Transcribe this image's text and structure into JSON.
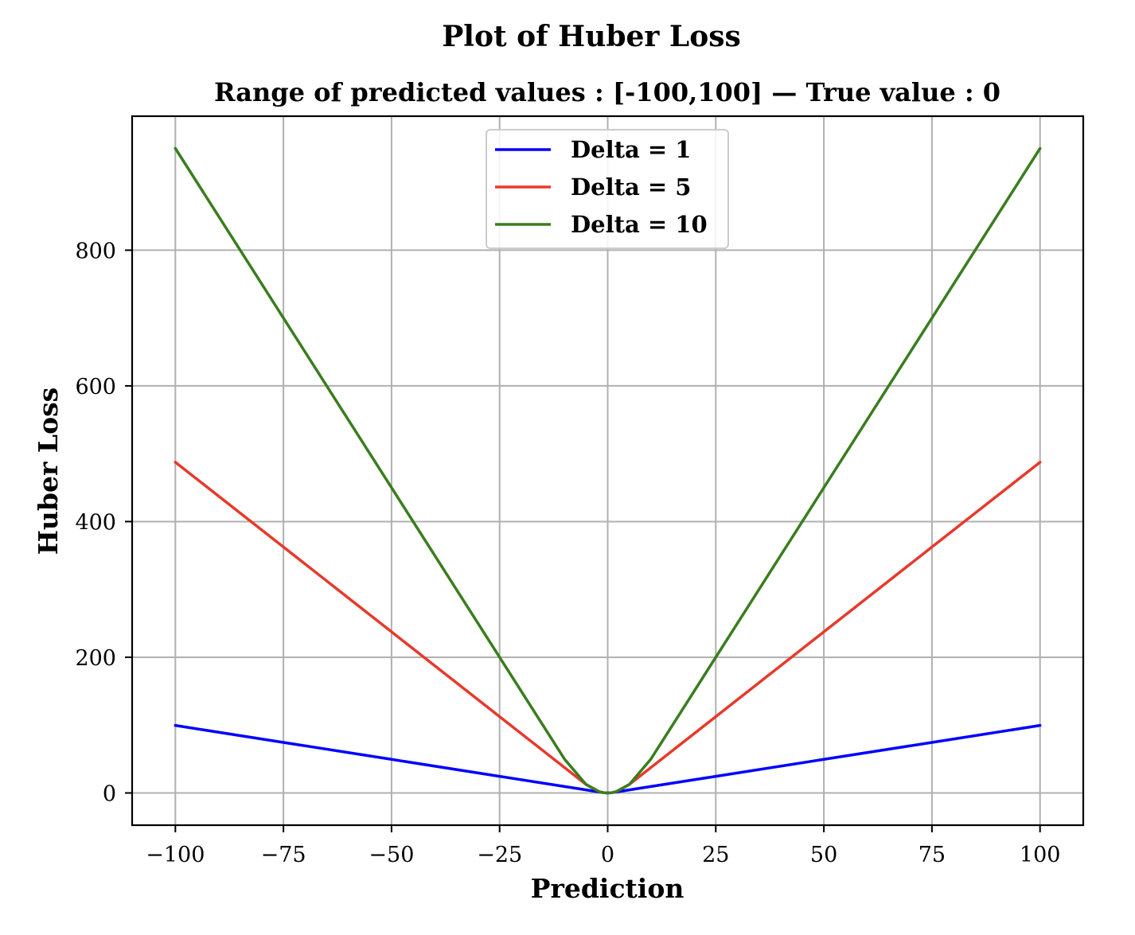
{
  "chart_data": {
    "type": "line",
    "title": "Plot of Huber Loss",
    "subtitle": "Range of predicted values : [-100,100] — True value : 0",
    "xlabel": "Prediction",
    "ylabel": "Huber Loss",
    "xlim": [
      -110,
      110
    ],
    "ylim": [
      -47.5,
      997.5
    ],
    "xticks": [
      -100,
      -75,
      -50,
      -25,
      0,
      25,
      50,
      75,
      100
    ],
    "xtick_labels": [
      "−100",
      "−75",
      "−50",
      "−25",
      "0",
      "25",
      "50",
      "75",
      "100"
    ],
    "yticks": [
      0,
      200,
      400,
      600,
      800
    ],
    "ytick_labels": [
      "0",
      "200",
      "400",
      "600",
      "800"
    ],
    "grid": true,
    "legend_position": "top-center",
    "x": [
      -100,
      -75,
      -50,
      -25,
      -10,
      -5,
      -2,
      -1,
      0,
      1,
      2,
      5,
      10,
      25,
      50,
      75,
      100
    ],
    "series": [
      {
        "name": "Delta = 1",
        "color": "#0000ff",
        "values": [
          99.5,
          74.5,
          49.5,
          24.5,
          9.5,
          4.5,
          1.5,
          0.5,
          0,
          0.5,
          1.5,
          4.5,
          9.5,
          24.5,
          49.5,
          74.5,
          99.5
        ]
      },
      {
        "name": "Delta = 5",
        "color": "#e8392a",
        "values": [
          487.5,
          362.5,
          237.5,
          112.5,
          37.5,
          12.5,
          2,
          0.5,
          0,
          0.5,
          2,
          12.5,
          37.5,
          112.5,
          237.5,
          362.5,
          487.5
        ]
      },
      {
        "name": "Delta = 10",
        "color": "#3a7d1e",
        "values": [
          950,
          700,
          450,
          200,
          50,
          12.5,
          2,
          0.5,
          0,
          0.5,
          2,
          12.5,
          50,
          200,
          450,
          700,
          950
        ]
      }
    ]
  }
}
